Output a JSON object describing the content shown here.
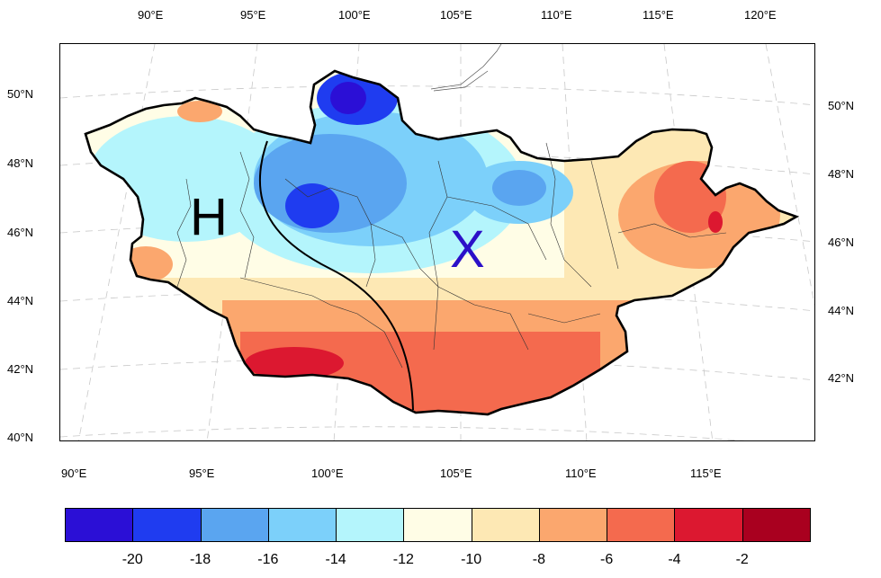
{
  "map": {
    "top_lon_labels": [
      "90°E",
      "95°E",
      "100°E",
      "105°E",
      "110°E",
      "115°E",
      "120°E"
    ],
    "bottom_lon_labels": [
      "90°E",
      "95°E",
      "100°E",
      "105°E",
      "110°E",
      "115°E"
    ],
    "left_lat_labels": [
      "50°N",
      "48°N",
      "46°N",
      "44°N",
      "42°N",
      "40°N"
    ],
    "right_lat_labels": [
      "50°N",
      "48°N",
      "46°N",
      "44°N",
      "42°N"
    ],
    "markers": {
      "h_label": "H",
      "x_label": "X",
      "h_color": "#000000",
      "x_color": "#2b10c8"
    }
  },
  "colorbar": {
    "colors": [
      "#2b0fd6",
      "#1f3cf0",
      "#5aa5f0",
      "#7cd0fa",
      "#b4f5fc",
      "#fffde6",
      "#fde8b4",
      "#fba76e",
      "#f46a4e",
      "#dc1830",
      "#a9001f"
    ],
    "labels": [
      "-20",
      "-18",
      "-16",
      "-14",
      "-12",
      "-10",
      "-8",
      "-6",
      "-4",
      "-2"
    ]
  }
}
